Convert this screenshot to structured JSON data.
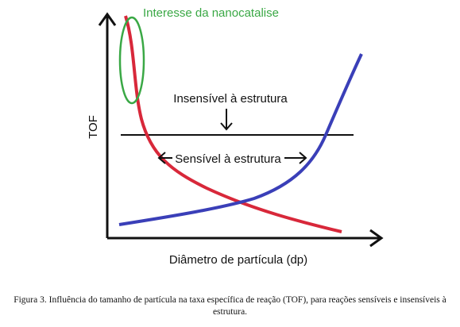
{
  "diagram": {
    "annotation_top": "Interesse da nanocatalise",
    "insensitive_label": "Insensível à estrutura",
    "sensitive_label": "Sensível à estrutura",
    "y_axis_label": "TOF",
    "x_axis_label": "Diâmetro de partícula (dp)"
  },
  "caption": "Figura 3. Influência do tamanho de partícula na taxa específica de reação (TOF), para reações sensíveis e insensíveis à estrutura."
}
